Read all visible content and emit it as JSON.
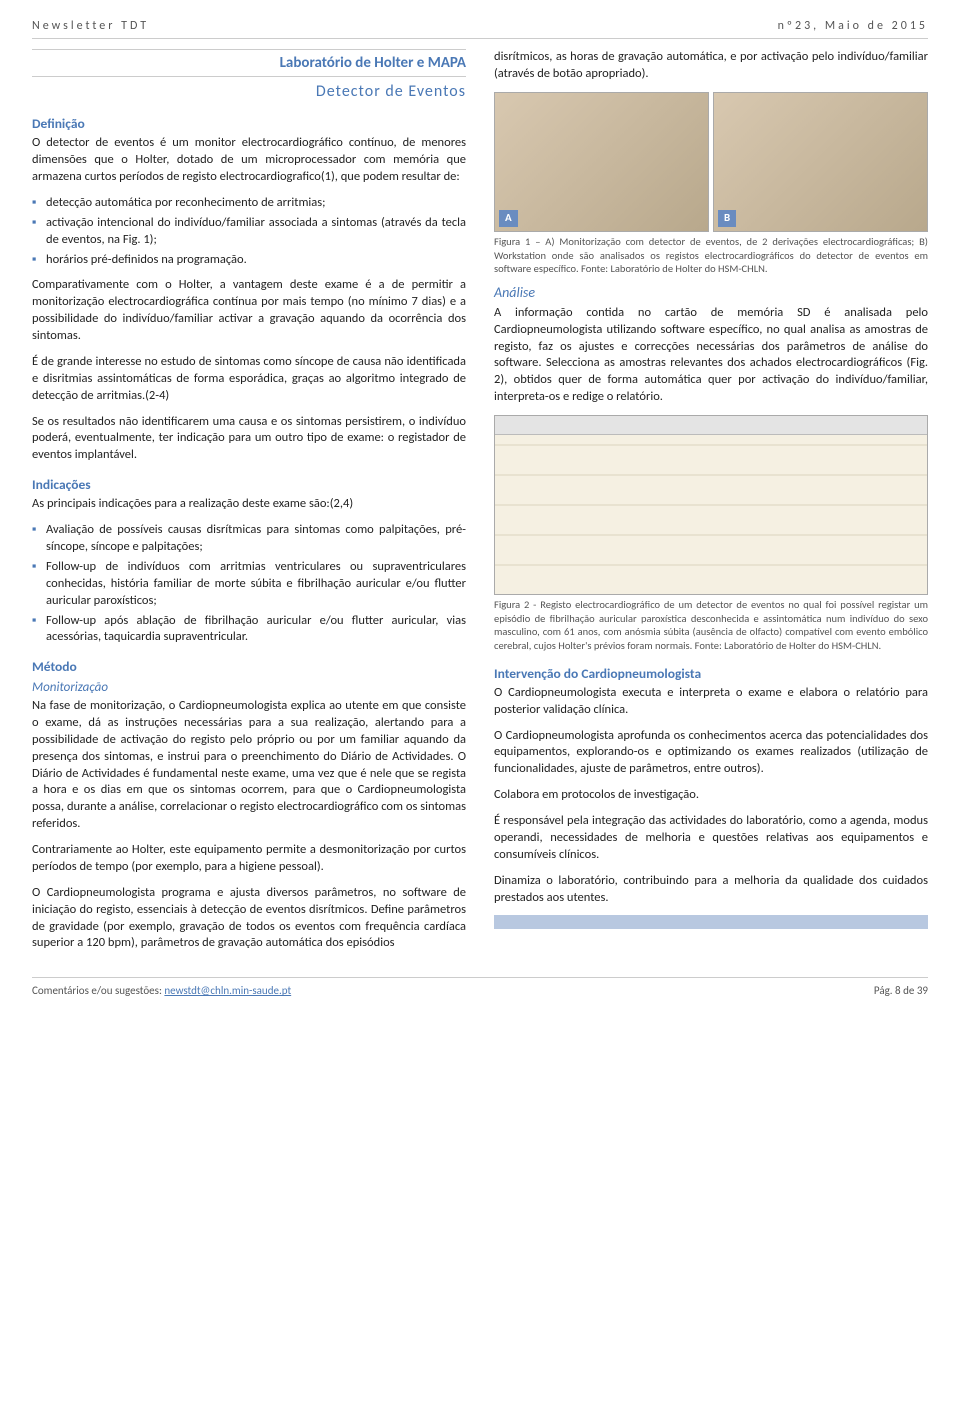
{
  "header": {
    "left": "Newsletter TDT",
    "right": "nº23, Maio de 2015"
  },
  "titles": {
    "lab": "Laboratório de Holter e MAPA",
    "sub": "Detector de Eventos"
  },
  "left_col": {
    "definicao_head": "Definição",
    "definicao_p1": "O detector de eventos é um monitor electrocardiográfico contínuo, de menores dimensões que o Holter, dotado de um microprocessador com memória que armazena curtos períodos de registo electrocardiografico(1), que podem resultar de:",
    "definicao_items": [
      "detecção automática por reconhecimento de arritmias;",
      "activação intencional do indivíduo/familiar associada a sintomas (através da tecla de eventos, na Fig. 1);",
      "horários pré-definidos na programação."
    ],
    "definicao_p2": "Comparativamente com o Holter, a vantagem deste exame é a de permitir a monitorização electrocardiográfica contínua por mais tempo (no mínimo 7 dias) e a possibilidade do indivíduo/familiar activar a gravação aquando da ocorrência dos sintomas.",
    "definicao_p3": "É de grande interesse no estudo de sintomas como síncope de causa não identificada e disritmias assintomáticas de forma esporádica, graças ao algoritmo integrado de detecção de arritmias.(2-4)",
    "definicao_p4": "Se os resultados não identificarem uma causa e os sintomas persistirem, o indivíduo poderá, eventualmente, ter indicação para um outro tipo de exame: o registador de eventos implantável.",
    "indicacoes_head": "Indicações",
    "indicacoes_intro": "As principais indicações para a realização deste exame são:(2,4)",
    "indicacoes_items": [
      "Avaliação de possíveis causas disrítmicas para sintomas como palpitações, pré-síncope, síncope e palpitações;",
      "Follow-up de indivíduos com arritmias ventriculares ou supraventriculares conhecidas, história familiar de morte súbita e fibrilhação auricular e/ou flutter auricular paroxísticos;",
      "Follow-up após ablação de fibrilhação auricular e/ou flutter auricular, vias acessórias, taquicardia supraventricular."
    ],
    "metodo_head": "Método",
    "monitorizacao_sub": "Monitorização",
    "metodo_p1": "Na fase de monitorização, o Cardiopneumologista explica ao utente em que consiste o exame, dá as instruções necessárias para a sua realização, alertando para a possibilidade de activação do registo pelo próprio ou por um familiar aquando da presença dos sintomas, e instrui para o preenchimento do Diário de Actividades. O Diário de Actividades é fundamental neste exame, uma vez que é nele que se regista a hora e os dias em que os sintomas ocorrem, para que o Cardiopneumologista possa, durante a análise, correlacionar o registo electrocardiográfico com os sintomas referidos.",
    "metodo_p2": "Contrariamente ao Holter, este equipamento permite a desmonitorização por curtos períodos de tempo (por exemplo, para a higiene pessoal).",
    "metodo_p3": "O Cardiopneumologista programa e ajusta diversos parâmetros, no software de iniciação do registo, essenciais à detecção de eventos disrítmicos. Define parâmetros de gravidade (por exemplo, gravação de todos os eventos com frequência cardíaca superior a 120 bpm), parâmetros de gravação automática dos episódios"
  },
  "right_col": {
    "cont_p": "disrítmicos, as horas de gravação automática, e por activação pelo indivíduo/familiar (através de botão apropriado).",
    "fig1_a": "A",
    "fig1_b": "B",
    "fig1_caption": "Figura 1 – A) Monitorização com detector de eventos, de 2 derivações electrocardiográficas; B) Workstation onde são analisados os registos electrocardiográficos do detector de eventos em software específico. Fonte: Laboratório de Holter do HSM-CHLN.",
    "analise_head": "Análise",
    "analise_p": "A informação contida no cartão de memória SD é analisada pelo Cardiopneumologista utilizando software específico, no qual analisa as amostras de registo, faz os ajustes e correcções necessárias dos parâmetros de análise do software. Selecciona as amostras relevantes dos achados electrocardiográficos (Fig. 2), obtidos quer de forma automática quer por activação do indivíduo/familiar, interpreta-os e redige o relatório.",
    "fig2_caption": "Figura 2 - Registo electrocardiográfico de um detector de eventos no qual foi possível registar um episódio de fibrilhação auricular paroxística desconhecida e assintomática num indivíduo do sexo masculino, com 61 anos, com anósmia súbita (ausência de olfacto) compatível com evento embólico cerebral, cujos Holter's prévios foram normais. Fonte: Laboratório de Holter do HSM-CHLN.",
    "intervencao_head": "Intervenção do Cardiopneumologista",
    "intervencao_p1": "O Cardiopneumologista executa e interpreta o exame e elabora o relatório para posterior validação clínica.",
    "intervencao_p2": "O Cardiopneumologista aprofunda os conhecimentos acerca das potencialidades dos equipamentos, explorando-os e optimizando os exames realizados (utilização de funcionalidades, ajuste de parâmetros, entre outros).",
    "intervencao_p3": "Colabora em protocolos de investigação.",
    "intervencao_p4": "É responsável pela integração das actividades do laboratório, como a agenda, modus operandi, necessidades de melhoria e questões relativas aos equipamentos e consumíveis clínicos.",
    "intervencao_p5": "Dinamiza o laboratório, contribuindo para a melhoria da qualidade dos cuidados prestados aos utentes."
  },
  "footer": {
    "left_prefix": "Comentários e/ou sugestões: ",
    "email": "newstdt@chln.min-saude.pt",
    "right": "Pág. 8 de 39"
  }
}
